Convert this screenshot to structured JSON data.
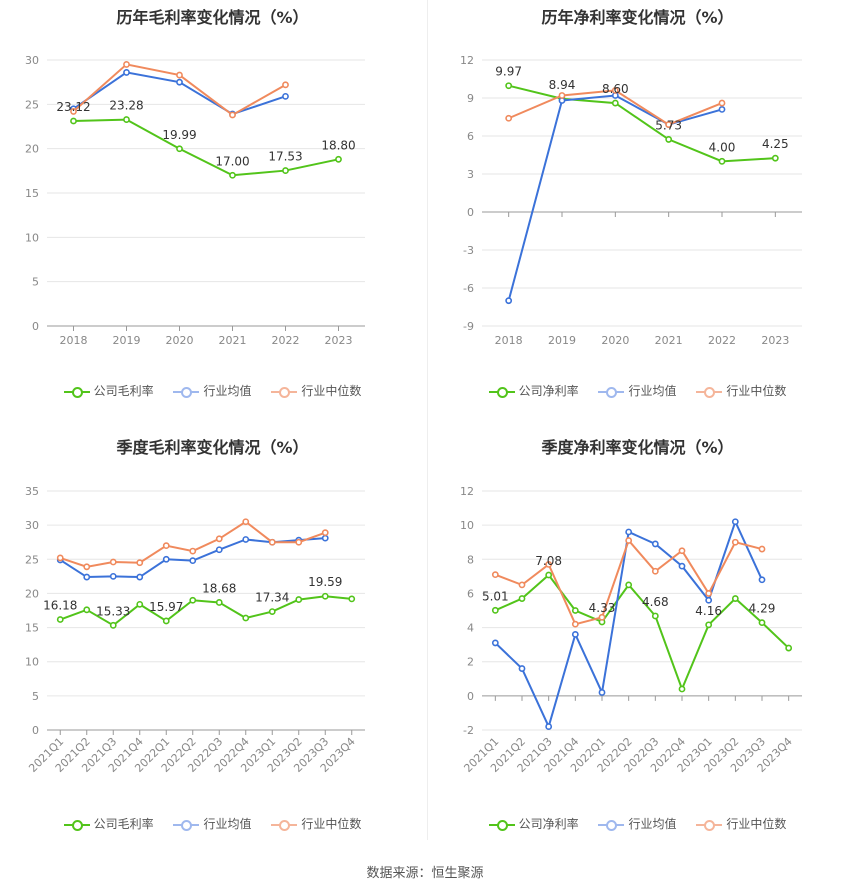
{
  "source_label": "数据来源：恒生聚源",
  "colors": {
    "company": "#52c41a",
    "avg": "#3b72d9",
    "median": "#f08a5d"
  },
  "charts": [
    {
      "id": "annual-gross",
      "title": "历年毛利率变化情况（%）",
      "legend": [
        "公司毛利率",
        "行业均值",
        "行业中位数"
      ],
      "chart_data": {
        "type": "line",
        "categories": [
          "2018",
          "2019",
          "2020",
          "2021",
          "2022",
          "2023"
        ],
        "ylim": [
          0,
          30
        ],
        "yticks": [
          0,
          5,
          10,
          15,
          20,
          25,
          30
        ],
        "series": [
          {
            "name": "公司毛利率",
            "values": [
              23.12,
              23.28,
              19.99,
              17.0,
              17.53,
              18.8
            ],
            "labels": [
              "23.12",
              "23.28",
              "19.99",
              "17.00",
              "17.53",
              "18.80"
            ]
          },
          {
            "name": "行业均值",
            "values": [
              24.5,
              28.6,
              27.5,
              23.9,
              25.9,
              null
            ]
          },
          {
            "name": "行业中位数",
            "values": [
              24.2,
              29.5,
              28.3,
              23.8,
              27.2,
              null
            ]
          }
        ]
      }
    },
    {
      "id": "annual-net",
      "title": "历年净利率变化情况（%）",
      "legend": [
        "公司净利率",
        "行业均值",
        "行业中位数"
      ],
      "chart_data": {
        "type": "line",
        "categories": [
          "2018",
          "2019",
          "2020",
          "2021",
          "2022",
          "2023"
        ],
        "ylim": [
          -9,
          12
        ],
        "yticks": [
          -9,
          -6,
          -3,
          0,
          3,
          6,
          9,
          12
        ],
        "series": [
          {
            "name": "公司净利率",
            "values": [
              9.97,
              8.94,
              8.6,
              5.73,
              4.0,
              4.25
            ],
            "labels": [
              "9.97",
              "8.94",
              "8.60",
              "5.73",
              "4.00",
              "4.25"
            ]
          },
          {
            "name": "行业均值",
            "values": [
              -7.0,
              8.8,
              9.2,
              6.9,
              8.1,
              null
            ]
          },
          {
            "name": "行业中位数",
            "values": [
              7.4,
              9.2,
              9.6,
              6.9,
              8.6,
              null
            ]
          }
        ]
      }
    },
    {
      "id": "quarterly-gross",
      "title": "季度毛利率变化情况（%）",
      "legend": [
        "公司毛利率",
        "行业均值",
        "行业中位数"
      ],
      "chart_data": {
        "type": "line",
        "categories": [
          "2021Q1",
          "2021Q2",
          "2021Q3",
          "2021Q4",
          "2022Q1",
          "2022Q2",
          "2022Q3",
          "2022Q4",
          "2023Q1",
          "2023Q2",
          "2023Q3",
          "2023Q4"
        ],
        "ylim": [
          0,
          35
        ],
        "yticks": [
          0,
          5,
          10,
          15,
          20,
          25,
          30,
          35
        ],
        "series": [
          {
            "name": "公司毛利率",
            "values": [
              16.18,
              17.6,
              15.33,
              18.4,
              15.97,
              19.0,
              18.68,
              16.4,
              17.34,
              19.1,
              19.59,
              19.2
            ],
            "labels": [
              "16.18",
              "",
              "15.33",
              "",
              "15.97",
              "",
              "18.68",
              "",
              "17.34",
              "",
              "19.59",
              ""
            ]
          },
          {
            "name": "行业均值",
            "values": [
              24.9,
              22.4,
              22.5,
              22.4,
              25.0,
              24.8,
              26.4,
              27.9,
              27.5,
              27.8,
              28.1,
              null
            ]
          },
          {
            "name": "行业中位数",
            "values": [
              25.2,
              23.9,
              24.6,
              24.5,
              27.0,
              26.2,
              28.0,
              30.5,
              27.5,
              27.5,
              28.9,
              null
            ]
          }
        ]
      }
    },
    {
      "id": "quarterly-net",
      "title": "季度净利率变化情况（%）",
      "legend": [
        "公司净利率",
        "行业均值",
        "行业中位数"
      ],
      "chart_data": {
        "type": "line",
        "categories": [
          "2021Q1",
          "2021Q2",
          "2021Q3",
          "2021Q4",
          "2022Q1",
          "2022Q2",
          "2022Q3",
          "2022Q4",
          "2023Q1",
          "2023Q2",
          "2023Q3",
          "2023Q4"
        ],
        "ylim": [
          -2,
          12
        ],
        "yticks": [
          -2,
          0,
          2,
          4,
          6,
          8,
          10,
          12
        ],
        "series": [
          {
            "name": "公司净利率",
            "values": [
              5.01,
              5.7,
              7.08,
              5.0,
              4.33,
              6.5,
              4.68,
              0.4,
              4.16,
              5.7,
              4.29,
              2.8
            ],
            "labels": [
              "5.01",
              "",
              "7.08",
              "",
              "4.33",
              "",
              "4.68",
              "",
              "4.16",
              "",
              "4.29",
              ""
            ]
          },
          {
            "name": "行业均值",
            "values": [
              3.1,
              1.6,
              -1.8,
              3.6,
              0.2,
              9.6,
              8.9,
              7.6,
              5.6,
              10.2,
              6.8,
              null
            ]
          },
          {
            "name": "行业中位数",
            "values": [
              7.1,
              6.5,
              7.7,
              4.2,
              4.6,
              9.1,
              7.3,
              8.5,
              6.0,
              9.0,
              8.6,
              null
            ]
          }
        ]
      }
    }
  ]
}
